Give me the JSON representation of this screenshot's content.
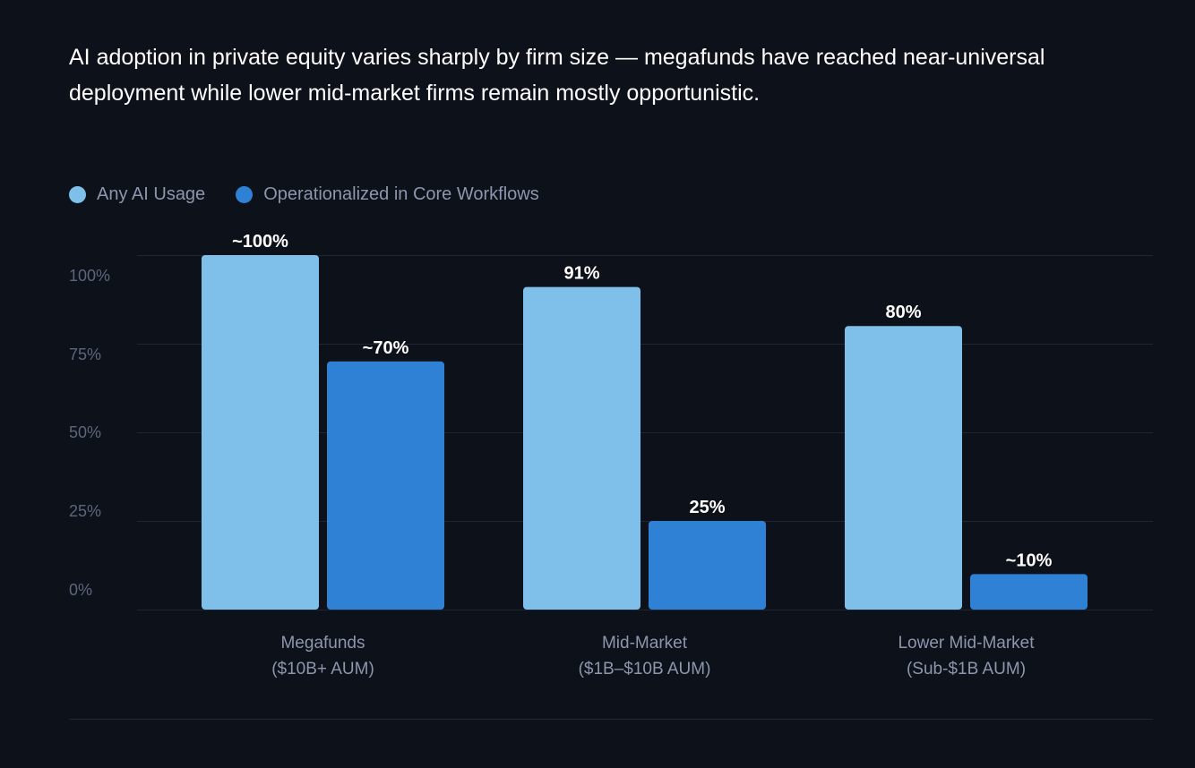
{
  "title": "AI adoption in private equity varies sharply by firm size — megafunds have reached near-universal deployment while lower mid-market firms remain mostly opportunistic.",
  "colors": {
    "background": "#0d111a",
    "series_light": "#7fc0ea",
    "series_dark": "#2f81d6",
    "grid": "#1f2533"
  },
  "legend": [
    {
      "label": "Any AI Usage",
      "color": "#7fc0ea"
    },
    {
      "label": "Operationalized in Core Workflows",
      "color": "#2f81d6"
    }
  ],
  "chart_data": {
    "type": "bar",
    "title": "AI adoption in private equity varies sharply by firm size — megafunds have reached near-universal deployment while lower mid-market firms remain mostly opportunistic.",
    "categories": [
      {
        "line1": "Megafunds",
        "line2": "($10B+ AUM)"
      },
      {
        "line1": "Mid-Market",
        "line2": "($1B–$10B AUM)"
      },
      {
        "line1": "Lower Mid-Market",
        "line2": "(Sub-$1B AUM)"
      }
    ],
    "series": [
      {
        "name": "Any AI Usage",
        "color": "#7fc0ea",
        "values": [
          100,
          91,
          80
        ],
        "labels": [
          "~100%",
          "91%",
          "80%"
        ]
      },
      {
        "name": "Operationalized in Core Workflows",
        "color": "#2f81d6",
        "values": [
          70,
          25,
          10
        ],
        "labels": [
          "~70%",
          "25%",
          "~10%"
        ]
      }
    ],
    "y_ticks": [
      {
        "value": 0,
        "label": "0%"
      },
      {
        "value": 25,
        "label": "25%"
      },
      {
        "value": 50,
        "label": "50%"
      },
      {
        "value": 75,
        "label": "75%"
      },
      {
        "value": 100,
        "label": "100%"
      }
    ],
    "ylim": [
      0,
      100
    ],
    "xlabel": "",
    "ylabel": "",
    "legend_position": "top-left",
    "grid": true
  }
}
